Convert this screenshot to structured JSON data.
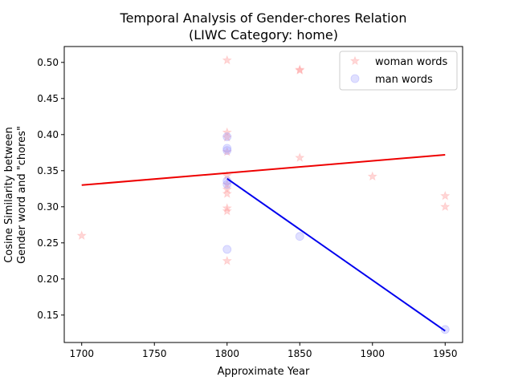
{
  "chart_data": {
    "type": "scatter",
    "title": "Temporal Analysis of Gender-chores Relation",
    "subtitle": "(LIWC Category: home)",
    "xlabel": "Approximate Year",
    "ylabel_line1": "Cosine Similarity between",
    "ylabel_line2": "Gender word and \"chores\"",
    "xlim": [
      1688,
      1962
    ],
    "ylim": [
      0.112,
      0.522
    ],
    "x_ticks": [
      1700,
      1750,
      1800,
      1850,
      1900,
      1950
    ],
    "y_ticks": [
      0.15,
      0.2,
      0.25,
      0.3,
      0.35,
      0.4,
      0.45,
      0.5
    ],
    "grid": false,
    "legend_position": "top-right",
    "series": [
      {
        "name": "woman words",
        "marker": "star",
        "color": "#ff9999",
        "points": [
          {
            "x": 1700,
            "y": 0.26
          },
          {
            "x": 1800,
            "y": 0.503
          },
          {
            "x": 1800,
            "y": 0.403
          },
          {
            "x": 1800,
            "y": 0.396
          },
          {
            "x": 1800,
            "y": 0.376
          },
          {
            "x": 1800,
            "y": 0.343
          },
          {
            "x": 1800,
            "y": 0.331
          },
          {
            "x": 1800,
            "y": 0.324
          },
          {
            "x": 1800,
            "y": 0.318
          },
          {
            "x": 1800,
            "y": 0.298
          },
          {
            "x": 1800,
            "y": 0.294
          },
          {
            "x": 1800,
            "y": 0.225
          },
          {
            "x": 1850,
            "y": 0.49
          },
          {
            "x": 1850,
            "y": 0.489
          },
          {
            "x": 1850,
            "y": 0.368
          },
          {
            "x": 1900,
            "y": 0.342
          },
          {
            "x": 1950,
            "y": 0.315
          },
          {
            "x": 1950,
            "y": 0.3
          }
        ],
        "trend": {
          "x": [
            1700,
            1950
          ],
          "y": [
            0.33,
            0.372
          ],
          "color": "#ee0000"
        }
      },
      {
        "name": "man words",
        "marker": "circle",
        "color": "#9999ff",
        "points": [
          {
            "x": 1800,
            "y": 0.397
          },
          {
            "x": 1800,
            "y": 0.381
          },
          {
            "x": 1800,
            "y": 0.378
          },
          {
            "x": 1800,
            "y": 0.336
          },
          {
            "x": 1800,
            "y": 0.331
          },
          {
            "x": 1800,
            "y": 0.241
          },
          {
            "x": 1850,
            "y": 0.259
          },
          {
            "x": 1950,
            "y": 0.13
          }
        ],
        "trend": {
          "x": [
            1800,
            1950
          ],
          "y": [
            0.339,
            0.128
          ],
          "color": "#0000ee"
        }
      }
    ],
    "colors": {
      "axes": "#000000",
      "background": "#ffffff",
      "legend_border": "#cccccc"
    }
  }
}
